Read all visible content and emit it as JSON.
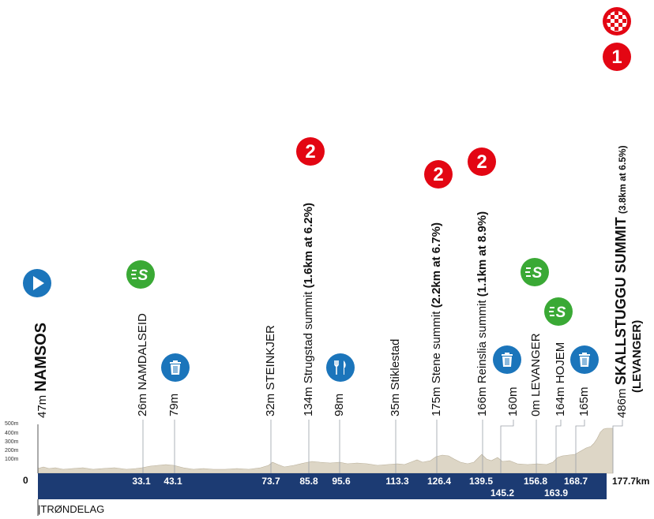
{
  "profile": {
    "zero_label": "0",
    "total_label": "177.7km",
    "region_label": "|TRØNDELAG",
    "elevation_ticks": [
      "500m",
      "400m",
      "300m",
      "200m",
      "100m"
    ],
    "colors": {
      "band": "#1c3b73",
      "terrain": "#ddd6c6",
      "climb": "#e30613",
      "sprint": "#3aa935",
      "service": "#1b75bb"
    }
  },
  "km_markers": [
    {
      "label": "33.1",
      "row": "in"
    },
    {
      "label": "43.1",
      "row": "in"
    },
    {
      "label": "73.7",
      "row": "in"
    },
    {
      "label": "85.8",
      "row": "in"
    },
    {
      "label": "95.6",
      "row": "in"
    },
    {
      "label": "113.3",
      "row": "in"
    },
    {
      "label": "126.4",
      "row": "in"
    },
    {
      "label": "139.5",
      "row": "in"
    },
    {
      "label": "145.2",
      "row": "below"
    },
    {
      "label": "156.8",
      "row": "in"
    },
    {
      "label": "163.9",
      "row": "below"
    },
    {
      "label": "168.7",
      "row": "in"
    }
  ],
  "waypoints": [
    {
      "alt": "47m",
      "name": "NAMSOS",
      "extra": "",
      "icon": "start-icon"
    },
    {
      "alt": "26m",
      "name": "NAMDALSEID",
      "extra": "",
      "icon": "sprint-icon"
    },
    {
      "alt": "79m",
      "name": "",
      "extra": "",
      "icon": "bin-icon"
    },
    {
      "alt": "32m",
      "name": "STEINKJER",
      "extra": "",
      "icon": ""
    },
    {
      "alt": "134m",
      "name": "Strugstad summit",
      "extra": "(1.6km at 6.2%)",
      "icon": "climb-cat-2-icon"
    },
    {
      "alt": "98m",
      "name": "",
      "extra": "",
      "icon": "feed-zone-icon"
    },
    {
      "alt": "35m",
      "name": "Stiklestad",
      "extra": "",
      "icon": ""
    },
    {
      "alt": "175m",
      "name": "Stene summit",
      "extra": "(2.2km at 6.7%)",
      "icon": "climb-cat-2-icon"
    },
    {
      "alt": "166m",
      "name": "Reinslia summit",
      "extra": "(1.1km at 8.9%)",
      "icon": "climb-cat-2-icon"
    },
    {
      "alt": "160m",
      "name": "",
      "extra": "",
      "icon": "bin-icon"
    },
    {
      "alt": "0m",
      "name": "LEVANGER",
      "extra": "",
      "icon": "sprint-icon"
    },
    {
      "alt": "164m",
      "name": "HOJEM",
      "extra": "",
      "icon": "sprint-icon"
    },
    {
      "alt": "165m",
      "name": "",
      "extra": "",
      "icon": "bin-icon"
    },
    {
      "alt": "486m",
      "name": "SKALLSTUGGU SUMMIT",
      "extra": "(3.8km at 6.5%)",
      "icon": "climb-cat-1-icon"
    }
  ],
  "finish": {
    "subtitle": "(LEVANGER)",
    "climb_category": "1"
  },
  "climb_badges": [
    "2",
    "2",
    "2"
  ]
}
